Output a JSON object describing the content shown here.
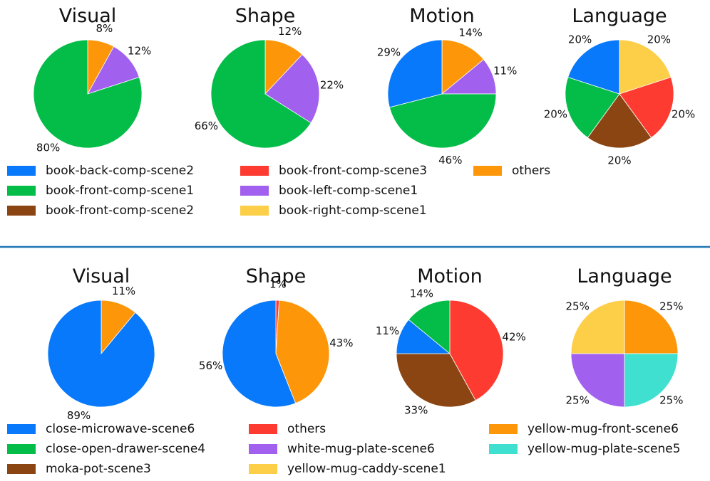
{
  "colors": {
    "blue": "#0879FA",
    "green": "#03BD48",
    "brown": "#8B4513",
    "red": "#FE3B31",
    "purple": "#A160EE",
    "yellow": "#FDCF48",
    "orange": "#FE960A",
    "cyan": "#40E0D0",
    "divider": "#1F77B4"
  },
  "chart_data": [
    {
      "type": "pie",
      "group": "top",
      "title": "Visual",
      "slices": [
        {
          "label": "others",
          "value": 8,
          "color": "#FE960A",
          "text": "8%"
        },
        {
          "label": "book-left-comp-scene1",
          "value": 12,
          "color": "#A160EE",
          "text": "12%"
        },
        {
          "label": "book-front-comp-scene1",
          "value": 80,
          "color": "#03BD48",
          "text": "80%"
        }
      ]
    },
    {
      "type": "pie",
      "group": "top",
      "title": "Shape",
      "slices": [
        {
          "label": "others",
          "value": 12,
          "color": "#FE960A",
          "text": "12%"
        },
        {
          "label": "book-left-comp-scene1",
          "value": 22,
          "color": "#A160EE",
          "text": "22%"
        },
        {
          "label": "book-front-comp-scene1",
          "value": 66,
          "color": "#03BD48",
          "text": "66%"
        }
      ]
    },
    {
      "type": "pie",
      "group": "top",
      "title": "Motion",
      "slices": [
        {
          "label": "others",
          "value": 14,
          "color": "#FE960A",
          "text": "14%"
        },
        {
          "label": "book-left-comp-scene1",
          "value": 11,
          "color": "#A160EE",
          "text": "11%"
        },
        {
          "label": "book-front-comp-scene1",
          "value": 46,
          "color": "#03BD48",
          "text": "46%"
        },
        {
          "label": "book-back-comp-scene2",
          "value": 29,
          "color": "#0879FA",
          "text": "29%"
        }
      ]
    },
    {
      "type": "pie",
      "group": "top",
      "title": "Language",
      "slices": [
        {
          "label": "book-right-comp-scene1",
          "value": 20,
          "color": "#FDCF48",
          "text": "20%"
        },
        {
          "label": "book-front-comp-scene3",
          "value": 20,
          "color": "#FE3B31",
          "text": "20%"
        },
        {
          "label": "book-front-comp-scene2",
          "value": 20,
          "color": "#8B4513",
          "text": "20%"
        },
        {
          "label": "book-front-comp-scene1",
          "value": 20,
          "color": "#03BD48",
          "text": "20%"
        },
        {
          "label": "book-back-comp-scene2",
          "value": 20,
          "color": "#0879FA",
          "text": "20%"
        }
      ]
    },
    {
      "type": "pie",
      "group": "bottom",
      "title": "Visual",
      "slices": [
        {
          "label": "yellow-mug-front-scene6",
          "value": 11,
          "color": "#FE960A",
          "text": "11%"
        },
        {
          "label": "close-microwave-scene6",
          "value": 89,
          "color": "#0879FA",
          "text": "89%"
        }
      ]
    },
    {
      "type": "pie",
      "group": "bottom",
      "title": "Shape",
      "slices": [
        {
          "label": "others",
          "value": 1,
          "color": "#FE3B31",
          "text": "1%"
        },
        {
          "label": "yellow-mug-front-scene6",
          "value": 43,
          "color": "#FE960A",
          "text": "43%"
        },
        {
          "label": "close-microwave-scene6",
          "value": 56,
          "color": "#0879FA",
          "text": "56%"
        }
      ]
    },
    {
      "type": "pie",
      "group": "bottom",
      "title": "Motion",
      "slices": [
        {
          "label": "others",
          "value": 42,
          "color": "#FE3B31",
          "text": "42%"
        },
        {
          "label": "moka-pot-scene3",
          "value": 33,
          "color": "#8B4513",
          "text": "33%"
        },
        {
          "label": "close-microwave-scene6",
          "value": 11,
          "color": "#0879FA",
          "text": "11%"
        },
        {
          "label": "close-open-drawer-scene4",
          "value": 14,
          "color": "#03BD48",
          "text": "14%"
        }
      ]
    },
    {
      "type": "pie",
      "group": "bottom",
      "title": "Language",
      "slices": [
        {
          "label": "yellow-mug-front-scene6",
          "value": 25,
          "color": "#FE960A",
          "text": "25%"
        },
        {
          "label": "yellow-mug-plate-scene5",
          "value": 25,
          "color": "#40E0D0",
          "text": "25%"
        },
        {
          "label": "white-mug-plate-scene6",
          "value": 25,
          "color": "#A160EE",
          "text": "25%"
        },
        {
          "label": "yellow-mug-caddy-scene1",
          "value": 25,
          "color": "#FDCF48",
          "text": "25%"
        }
      ]
    }
  ],
  "legends": {
    "top": [
      {
        "label": "book-back-comp-scene2",
        "color": "#0879FA"
      },
      {
        "label": "book-front-comp-scene1",
        "color": "#03BD48"
      },
      {
        "label": "book-front-comp-scene2",
        "color": "#8B4513"
      },
      {
        "label": "book-front-comp-scene3",
        "color": "#FE3B31"
      },
      {
        "label": "book-left-comp-scene1",
        "color": "#A160EE"
      },
      {
        "label": "book-right-comp-scene1",
        "color": "#FDCF48"
      },
      {
        "label": "others",
        "color": "#FE960A"
      }
    ],
    "bottom": [
      {
        "label": "close-microwave-scene6",
        "color": "#0879FA"
      },
      {
        "label": "close-open-drawer-scene4",
        "color": "#03BD48"
      },
      {
        "label": "moka-pot-scene3",
        "color": "#8B4513"
      },
      {
        "label": "others",
        "color": "#FE3B31"
      },
      {
        "label": "white-mug-plate-scene6",
        "color": "#A160EE"
      },
      {
        "label": "yellow-mug-caddy-scene1",
        "color": "#FDCF48"
      },
      {
        "label": "yellow-mug-front-scene6",
        "color": "#FE960A"
      },
      {
        "label": "yellow-mug-plate-scene5",
        "color": "#40E0D0"
      }
    ]
  }
}
